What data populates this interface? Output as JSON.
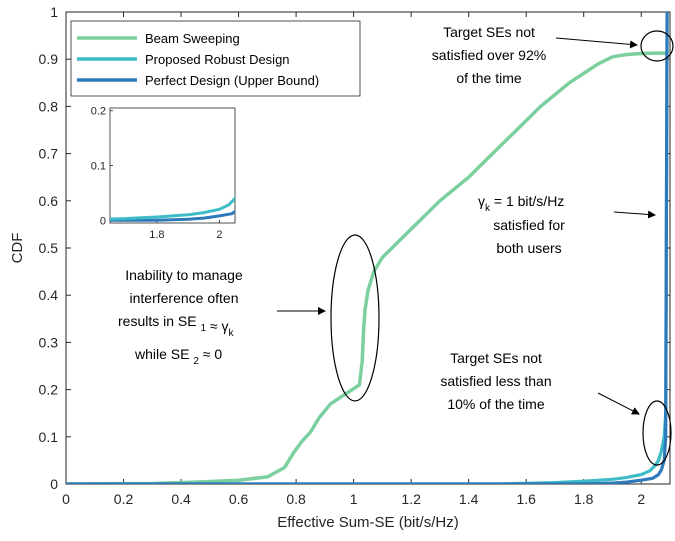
{
  "chart_data": {
    "type": "line",
    "xlabel": "Effective Sum-SE (bit/s/Hz)",
    "ylabel": "CDF",
    "xlim": [
      0,
      2.1
    ],
    "ylim": [
      0,
      1
    ],
    "x_ticks": [
      "0",
      "0.2",
      "0.4",
      "0.6",
      "0.8",
      "1",
      "1.2",
      "1.4",
      "1.6",
      "1.8",
      "2"
    ],
    "y_ticks": [
      "0",
      "0.1",
      "0.2",
      "0.3",
      "0.4",
      "0.5",
      "0.6",
      "0.7",
      "0.8",
      "0.9",
      "1"
    ],
    "grid": false,
    "legend_position": "top-left",
    "series": [
      {
        "name": "Beam Sweeping",
        "color": "#7ccf9e",
        "x": [
          0,
          0.3,
          0.45,
          0.52,
          0.6,
          0.7,
          0.76,
          0.79,
          0.82,
          0.85,
          0.88,
          0.92,
          0.97,
          1.02,
          1.03,
          1.035,
          1.04,
          1.05,
          1.07,
          1.1,
          1.15,
          1.2,
          1.25,
          1.3,
          1.35,
          1.4,
          1.45,
          1.5,
          1.55,
          1.6,
          1.65,
          1.7,
          1.75,
          1.8,
          1.85,
          1.9,
          1.95,
          2.0,
          2.05,
          2.09
        ],
        "y": [
          0,
          0.001,
          0.004,
          0.006,
          0.008,
          0.015,
          0.035,
          0.065,
          0.09,
          0.11,
          0.14,
          0.17,
          0.19,
          0.21,
          0.26,
          0.33,
          0.37,
          0.41,
          0.45,
          0.48,
          0.51,
          0.54,
          0.57,
          0.6,
          0.625,
          0.65,
          0.68,
          0.71,
          0.74,
          0.77,
          0.8,
          0.825,
          0.85,
          0.87,
          0.89,
          0.905,
          0.91,
          0.912,
          0.913,
          0.913
        ]
      },
      {
        "name": "Proposed Robust Design",
        "color": "#3dbcc8",
        "x": [
          0,
          1.5,
          1.7,
          1.8,
          1.9,
          1.95,
          2.0,
          2.03,
          2.05,
          2.06,
          2.07,
          2.08,
          2.085,
          2.09
        ],
        "y": [
          0,
          0,
          0.003,
          0.006,
          0.01,
          0.014,
          0.02,
          0.028,
          0.04,
          0.05,
          0.07,
          0.1,
          0.15,
          1.0
        ]
      },
      {
        "name": "Perfect Design (Upper Bound)",
        "color": "#2d79b9",
        "x": [
          0,
          1.8,
          1.9,
          1.95,
          2.0,
          2.04,
          2.06,
          2.07,
          2.08,
          2.085,
          2.09
        ],
        "y": [
          0,
          0,
          0.002,
          0.004,
          0.008,
          0.012,
          0.02,
          0.03,
          0.05,
          0.1,
          1.0
        ]
      }
    ],
    "inset": {
      "xlim": [
        1.65,
        2.05
      ],
      "ylim": [
        -0.005,
        0.205
      ],
      "x_ticks": [
        "1.8",
        "2"
      ],
      "y_ticks": [
        "0",
        "0.1",
        "0.2"
      ]
    },
    "annotations": [
      {
        "lines": [
          "Target SEs not",
          "satisfied over 92%",
          "of the time"
        ]
      },
      {
        "gamma": "γ",
        "sub": "k",
        "rest": " = 1 bit/s/Hz",
        "lines": [
          "satisfied for",
          "both users"
        ]
      },
      {
        "lines": [
          "Inability to manage",
          "interference often"
        ]
      },
      {
        "prefix": "results in SE ",
        "sub": "1",
        "rel": " ≈ γ",
        "sub2": "k"
      },
      {
        "prefix": "while SE ",
        "sub": "2",
        "rel": " ≈ 0"
      },
      {
        "lines": [
          "Target SEs not",
          "satisfied less than",
          "10% of the time"
        ]
      }
    ]
  }
}
